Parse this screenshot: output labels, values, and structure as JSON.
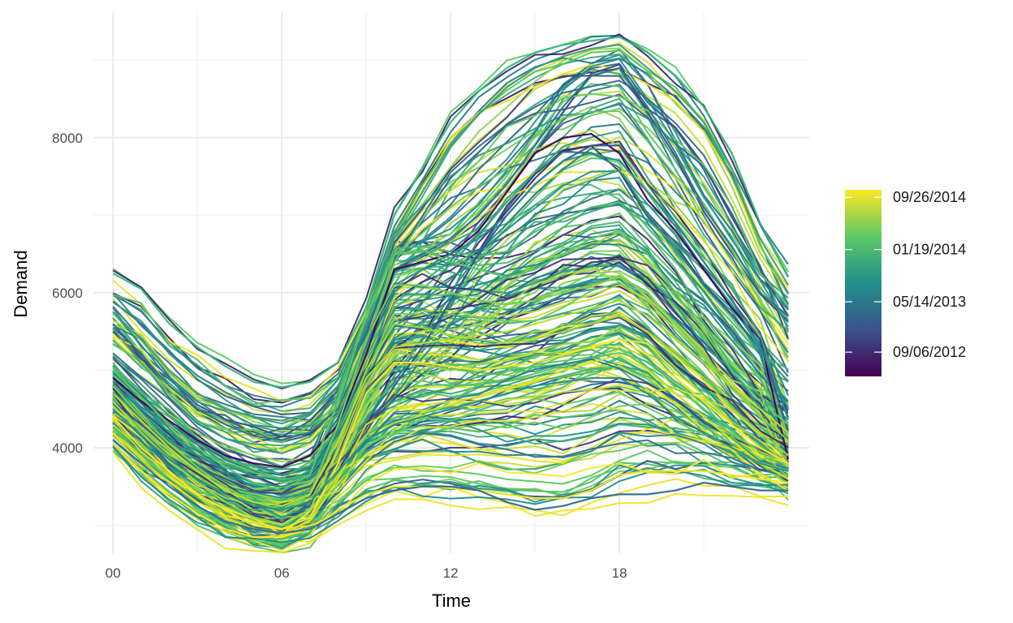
{
  "chart_data": {
    "type": "line",
    "title": "",
    "xlabel": "Time",
    "ylabel": "Demand",
    "x_unit": "hour of day (half-hourly)",
    "xlim": [
      -0.7,
      24.75
    ],
    "ylim": [
      2640,
      9620
    ],
    "x_ticks": [
      {
        "value": 0,
        "label": "00"
      },
      {
        "value": 6,
        "label": "06"
      },
      {
        "value": 12,
        "label": "12"
      },
      {
        "value": 18,
        "label": "18"
      }
    ],
    "y_ticks": [
      {
        "value": 4000,
        "label": "4000"
      },
      {
        "value": 6000,
        "label": "6000"
      },
      {
        "value": 8000,
        "label": "8000"
      }
    ],
    "grid": true,
    "legend": {
      "position": "right",
      "type": "continuous colorbar",
      "palette": [
        "#440154",
        "#3b528b",
        "#21908c",
        "#5dc863",
        "#fde725"
      ],
      "labels": [
        "09/26/2014",
        "01/19/2014",
        "05/14/2013",
        "09/06/2012"
      ],
      "label_fractions": [
        0.96,
        0.68,
        0.4,
        0.13
      ]
    },
    "series_count_estimate": 1000,
    "representative_profiles": [
      {
        "color": "#35b779",
        "values": [
          6250,
          6050,
          5600,
          5300,
          5050,
          4850,
          4780,
          4850,
          5100,
          5800,
          7000,
          7600,
          8200,
          8600,
          8900,
          9100,
          9200,
          9250,
          9300,
          9100,
          8800,
          8400,
          7800,
          6900,
          6200
        ]
      },
      {
        "color": "#3e9e7a",
        "values": [
          5750,
          5400,
          5000,
          4700,
          4500,
          4400,
          4350,
          4450,
          4800,
          5600,
          6700,
          7300,
          7900,
          8300,
          8650,
          8900,
          9050,
          9150,
          9200,
          8900,
          8600,
          8200,
          7500,
          6700,
          6100
        ]
      },
      {
        "color": "#2c728e",
        "values": [
          5600,
          5200,
          4800,
          4500,
          4300,
          4150,
          4100,
          4200,
          4500,
          5300,
          6300,
          6500,
          6700,
          7000,
          7400,
          7900,
          8400,
          8800,
          8900,
          8400,
          7800,
          7100,
          6600,
          6000,
          5700
        ]
      },
      {
        "color": "#440154",
        "values": [
          4900,
          4600,
          4350,
          4100,
          3900,
          3800,
          3750,
          3900,
          4300,
          5200,
          6300,
          6400,
          6500,
          6800,
          7300,
          7800,
          8000,
          8050,
          7800,
          7200,
          6800,
          6300,
          5800,
          5400,
          3850
        ]
      },
      {
        "color": "#3b528b",
        "values": [
          4600,
          4300,
          4000,
          3750,
          3600,
          3450,
          3400,
          3500,
          3800,
          4200,
          4800,
          5300,
          5900,
          6500,
          7000,
          7400,
          7700,
          7900,
          7900,
          7400,
          6900,
          6400,
          5900,
          5400,
          4200
        ]
      },
      {
        "color": "#21908c",
        "values": [
          4800,
          4500,
          4200,
          3900,
          3700,
          3550,
          3500,
          3600,
          4000,
          4900,
          6100,
          6300,
          6500,
          6700,
          7000,
          7400,
          7700,
          7800,
          7700,
          7300,
          6900,
          6400,
          5900,
          5300,
          4500
        ]
      },
      {
        "color": "#5dc863",
        "values": [
          5000,
          4650,
          4300,
          4000,
          3750,
          3550,
          3450,
          3650,
          4600,
          5700,
          6500,
          6550,
          6400,
          6300,
          6200,
          6300,
          6500,
          6700,
          6800,
          6500,
          6000,
          5500,
          5000,
          4600,
          4300
        ]
      },
      {
        "color": "#7ad151",
        "values": [
          4800,
          4400,
          4050,
          3750,
          3500,
          3300,
          3200,
          3400,
          4300,
          5400,
          6100,
          6100,
          6000,
          5900,
          5850,
          5900,
          6000,
          6100,
          6200,
          6000,
          5600,
          5200,
          4800,
          4400,
          4100
        ]
      },
      {
        "color": "#a0da39",
        "values": [
          4600,
          4200,
          3850,
          3550,
          3300,
          3100,
          3000,
          3200,
          4000,
          5000,
          5600,
          5550,
          5450,
          5400,
          5350,
          5400,
          5500,
          5600,
          5700,
          5500,
          5200,
          4900,
          4500,
          4200,
          3900
        ]
      },
      {
        "color": "#fde725",
        "values": [
          4400,
          4000,
          3700,
          3400,
          3200,
          3000,
          2950,
          3100,
          3800,
          4700,
          5100,
          5100,
          5050,
          5000,
          5050,
          5100,
          5200,
          5300,
          5400,
          5200,
          4900,
          4600,
          4300,
          4000,
          3800
        ]
      },
      {
        "color": "#d8e219",
        "values": [
          4200,
          3850,
          3550,
          3300,
          3100,
          2950,
          2900,
          3050,
          3600,
          4300,
          4500,
          4550,
          4600,
          4650,
          4750,
          4850,
          5000,
          5100,
          5200,
          5000,
          4700,
          4400,
          4100,
          3800,
          3600
        ]
      },
      {
        "color": "#fde725",
        "values": [
          4050,
          3700,
          3400,
          3150,
          2950,
          2850,
          2850,
          2950,
          3200,
          3400,
          3500,
          3500,
          3480,
          3450,
          3400,
          3350,
          3350,
          3450,
          3650,
          3700,
          3700,
          3700,
          3650,
          3600,
          3550
        ]
      },
      {
        "color": "#31688e",
        "values": [
          4100,
          3800,
          3500,
          3250,
          3050,
          2950,
          2900,
          2950,
          3150,
          3350,
          3450,
          3500,
          3500,
          3450,
          3300,
          3200,
          3250,
          3350,
          3400,
          3400,
          3450,
          3550,
          3500,
          3450,
          3450
        ]
      },
      {
        "color": "#21908c",
        "values": [
          4500,
          4150,
          3850,
          3600,
          3400,
          3250,
          3200,
          3300,
          3700,
          4100,
          4300,
          4400,
          4500,
          4600,
          4700,
          4800,
          4850,
          4900,
          4900,
          4700,
          4400,
          4200,
          4000,
          3800,
          3700
        ]
      },
      {
        "color": "#b5de2b",
        "values": [
          4700,
          4350,
          4000,
          3700,
          3450,
          3300,
          3250,
          3400,
          4100,
          4900,
          5300,
          5350,
          5400,
          5450,
          5500,
          5600,
          5700,
          5800,
          5900,
          5700,
          5400,
          5100,
          4800,
          4500,
          4200
        ]
      }
    ]
  }
}
